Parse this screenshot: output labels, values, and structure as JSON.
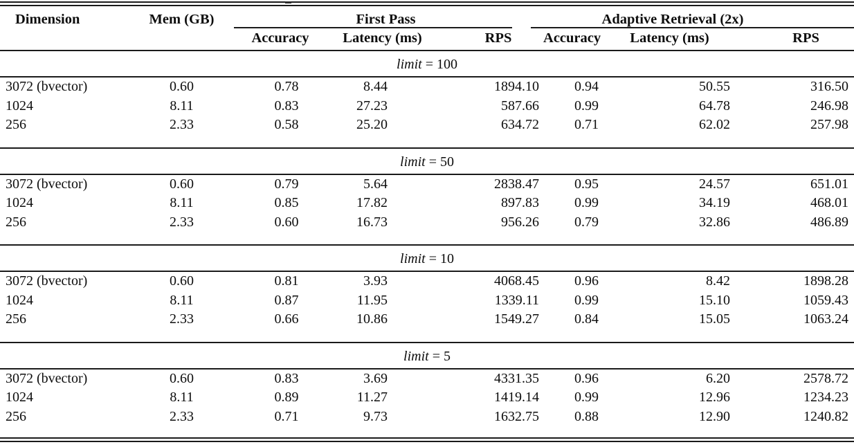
{
  "colors": {
    "background": "#ffffff",
    "text": "#0d0d0d",
    "rule": "#1a1a1a"
  },
  "table": {
    "headers": {
      "dimension": "Dimension",
      "mem": "Mem (GB)"
    },
    "groups": [
      {
        "label": "First Pass"
      },
      {
        "label": "Adaptive Retrieval (2x)"
      }
    ],
    "sub_headers": [
      "Accuracy",
      "Latency (ms)",
      "RPS",
      "Accuracy",
      "Latency (ms)",
      "RPS"
    ],
    "sections": [
      {
        "id": "limit-100",
        "limit_var": "limit",
        "limit_value": "= 100",
        "rows": [
          [
            "3072 (bvector)",
            "0.60",
            "0.78",
            "8.44",
            "1894.10",
            "0.94",
            "50.55",
            "316.50"
          ],
          [
            "1024",
            "8.11",
            "0.83",
            "27.23",
            "587.66",
            "0.99",
            "64.78",
            "246.98"
          ],
          [
            "256",
            "2.33",
            "0.58",
            "25.20",
            "634.72",
            "0.71",
            "62.02",
            "257.98"
          ]
        ]
      },
      {
        "id": "limit-50",
        "limit_var": "limit",
        "limit_value": "= 50",
        "rows": [
          [
            "3072 (bvector)",
            "0.60",
            "0.79",
            "5.64",
            "2838.47",
            "0.95",
            "24.57",
            "651.01"
          ],
          [
            "1024",
            "8.11",
            "0.85",
            "17.82",
            "897.83",
            "0.99",
            "34.19",
            "468.01"
          ],
          [
            "256",
            "2.33",
            "0.60",
            "16.73",
            "956.26",
            "0.79",
            "32.86",
            "486.89"
          ]
        ]
      },
      {
        "id": "limit-10",
        "limit_var": "limit",
        "limit_value": "= 10",
        "rows": [
          [
            "3072 (bvector)",
            "0.60",
            "0.81",
            "3.93",
            "4068.45",
            "0.96",
            "8.42",
            "1898.28"
          ],
          [
            "1024",
            "8.11",
            "0.87",
            "11.95",
            "1339.11",
            "0.99",
            "15.10",
            "1059.43"
          ],
          [
            "256",
            "2.33",
            "0.66",
            "10.86",
            "1549.27",
            "0.84",
            "15.05",
            "1063.24"
          ]
        ]
      },
      {
        "id": "limit-5",
        "limit_var": "limit",
        "limit_value": "= 5",
        "rows": [
          [
            "3072 (bvector)",
            "0.60",
            "0.83",
            "3.69",
            "4331.35",
            "0.96",
            "6.20",
            "2578.72"
          ],
          [
            "1024",
            "8.11",
            "0.89",
            "11.27",
            "1419.14",
            "0.99",
            "12.96",
            "1234.23"
          ],
          [
            "256",
            "2.33",
            "0.71",
            "9.73",
            "1632.75",
            "0.88",
            "12.90",
            "1240.82"
          ]
        ]
      }
    ]
  }
}
